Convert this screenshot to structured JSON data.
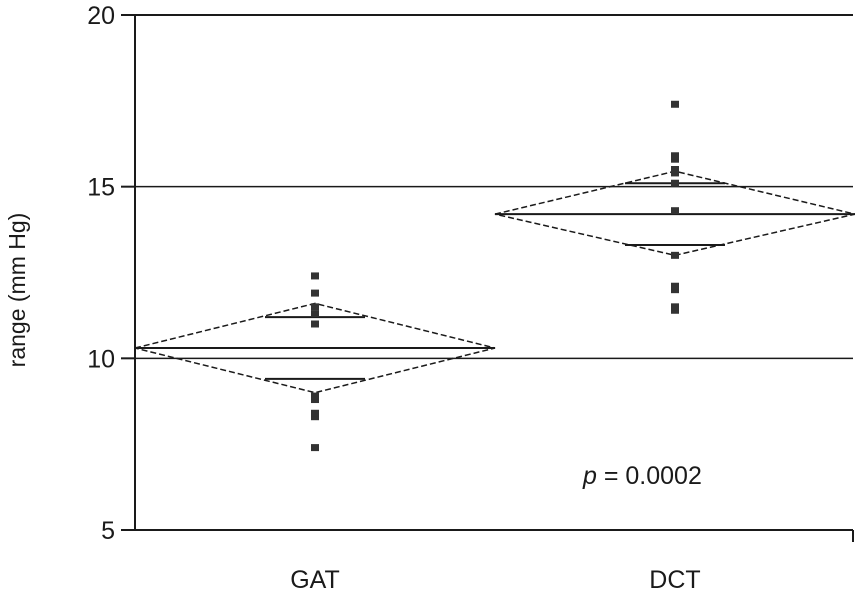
{
  "chart_data": {
    "type": "scatter",
    "ylabel": "range (mm Hg)",
    "ylim": [
      5,
      20
    ],
    "yticks": [
      5,
      10,
      15,
      20
    ],
    "categories": [
      "GAT",
      "DCT"
    ],
    "reference_lines": [
      10,
      15
    ],
    "grid": false,
    "groups": [
      {
        "category": "GAT",
        "mean": 10.3,
        "ci_low": 9.0,
        "ci_high": 11.6,
        "quantile_lines": [
          9.4,
          11.2
        ],
        "points": [
          7.4,
          8.3,
          8.4,
          8.8,
          8.9,
          11.0,
          11.3,
          11.5,
          11.9,
          12.4
        ]
      },
      {
        "category": "DCT",
        "mean": 14.2,
        "ci_low": 13.0,
        "ci_high": 15.45,
        "quantile_lines": [
          13.3,
          15.1
        ],
        "points": [
          11.4,
          11.5,
          12.0,
          12.1,
          13.0,
          14.3,
          15.1,
          15.4,
          15.5,
          15.8,
          15.9,
          17.4
        ]
      }
    ],
    "annotation": {
      "p_symbol": "p",
      "p_text": " = 0.0002"
    },
    "colors": {
      "line": "#1a1a1a",
      "marker": "#333333"
    }
  }
}
